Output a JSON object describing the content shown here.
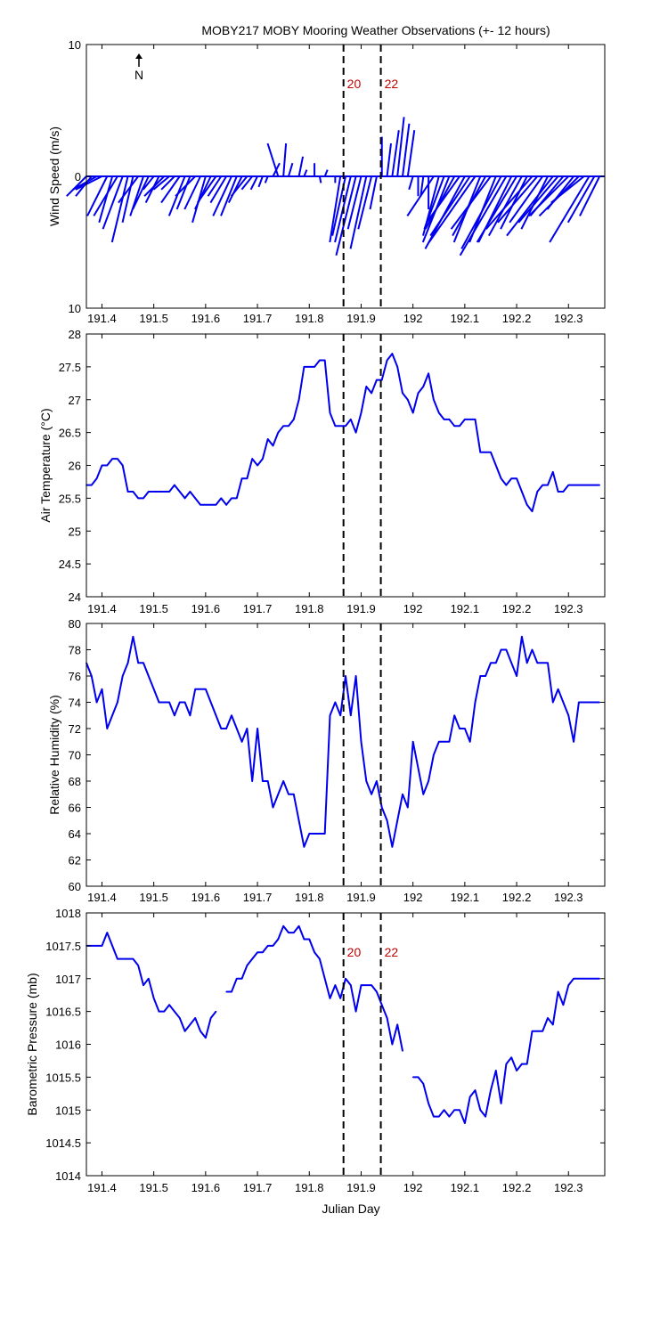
{
  "title": "MOBY217 MOBY Mooring Weather Observations (+- 12 hours)",
  "xlabel": "Julian Day",
  "x_ticks": [
    191.4,
    191.5,
    191.6,
    191.7,
    191.8,
    191.9,
    192,
    192.1,
    192.2,
    192.3
  ],
  "x_tick_labels": [
    "191.4",
    "191.5",
    "191.6",
    "191.7",
    "191.8",
    "191.9",
    "192",
    "192.1",
    "192.2",
    "192.3"
  ],
  "xlim": [
    191.37,
    192.37
  ],
  "colors": {
    "series": "#0000ee",
    "marker": "#c00000"
  },
  "markers": [
    {
      "x": 191.866,
      "label": "20"
    },
    {
      "x": 191.938,
      "label": "22"
    }
  ],
  "north_label": "N",
  "chart_data": [
    {
      "type": "quiver",
      "name": "wind",
      "ylabel": "Wind Speed (m/s)",
      "ylim": [
        -10,
        10
      ],
      "y_ticks": [
        10,
        0,
        10
      ],
      "y_tick_labels": [
        "10",
        "0",
        "10"
      ],
      "show_markers": true,
      "x": [
        191.37,
        191.38,
        191.39,
        191.4,
        191.41,
        191.42,
        191.43,
        191.44,
        191.45,
        191.46,
        191.47,
        191.48,
        191.49,
        191.5,
        191.51,
        191.52,
        191.53,
        191.54,
        191.55,
        191.56,
        191.57,
        191.58,
        191.59,
        191.6,
        191.61,
        191.62,
        191.63,
        191.64,
        191.65,
        191.66,
        191.67,
        191.68,
        191.69,
        191.7,
        191.71,
        191.72,
        191.73,
        191.74,
        191.75,
        191.76,
        191.77,
        191.78,
        191.79,
        191.8,
        191.81,
        191.82,
        191.83,
        191.84,
        191.85,
        191.86,
        191.87,
        191.88,
        191.89,
        191.9,
        191.91,
        191.92,
        191.93,
        191.94,
        191.95,
        191.96,
        191.97,
        191.98,
        191.99,
        192.0,
        192.01,
        192.02,
        192.03,
        192.04,
        192.05,
        192.06,
        192.07,
        192.08,
        192.09,
        192.1,
        192.11,
        192.12,
        192.13,
        192.14,
        192.15,
        192.16,
        192.17,
        192.18,
        192.19,
        192.2,
        192.21,
        192.22,
        192.23,
        192.24,
        192.25,
        192.26,
        192.27,
        192.28,
        192.29,
        192.3,
        192.31,
        192.32,
        192.33,
        192.34,
        192.35,
        192.36
      ],
      "u": [
        -1.5,
        -1.2,
        -1.8,
        -2.0,
        -1.5,
        -1.0,
        -1.8,
        -1.5,
        -1.2,
        -0.8,
        -1.5,
        -1.0,
        -1.2,
        -0.8,
        -1.0,
        -1.5,
        -1.2,
        -1.0,
        -1.4,
        -1.2,
        -1.0,
        -1.5,
        -1.2,
        -1.0,
        -1.2,
        -1.4,
        -1.0,
        -1.2,
        -1.4,
        -1.2,
        -1.0,
        -1.2,
        -0.8,
        -0.5,
        -0.3,
        -0.2,
        0.5,
        -0.8,
        0.2,
        0.3,
        0.0,
        0.3,
        0.2,
        0.0,
        0.0,
        0.1,
        0.2,
        0.3,
        0.0,
        -0.8,
        -1.0,
        -1.2,
        -1.5,
        -1.0,
        -1.2,
        -1.0,
        -0.5,
        0.0,
        0.3,
        0.5,
        0.5,
        0.5,
        0.5,
        -0.3,
        0.0,
        -0.2,
        0.0,
        -2.0,
        -1.2,
        -1.5,
        -2.0,
        -2.2,
        -2.5,
        -3.0,
        -3.0,
        -3.5,
        -2.0,
        -2.5,
        -3.0,
        -2.0,
        -3.0,
        -3.5,
        -2.5,
        -3.0,
        -2.5,
        -2.0,
        -3.5,
        -3.0,
        -2.5,
        -2.0,
        -3.5,
        -3.0,
        -2.5,
        -3.0,
        -2.0,
        -3.0,
        -2.5,
        -3.0,
        -2.0,
        -1.5
      ],
      "v": [
        -1.5,
        -1.5,
        -1.0,
        -1.0,
        -3.0,
        -3.5,
        -3.0,
        -4.0,
        -5.0,
        -3.5,
        -2.0,
        -3.0,
        -2.5,
        -1.0,
        -2.0,
        -1.5,
        -1.0,
        -1.0,
        -2.0,
        -3.0,
        -2.5,
        -1.5,
        -2.5,
        -3.5,
        -2.5,
        -2.0,
        -1.5,
        -2.0,
        -3.0,
        -3.0,
        -2.0,
        -1.5,
        -1.0,
        -1.0,
        -0.8,
        -0.5,
        1.0,
        2.5,
        2.5,
        1.0,
        0.0,
        1.5,
        0.5,
        0.0,
        1.0,
        -0.5,
        0.5,
        0.0,
        -0.5,
        -5.0,
        -4.5,
        -5.0,
        -6.0,
        -4.0,
        -5.5,
        -4.0,
        -2.5,
        3.0,
        2.5,
        3.5,
        4.5,
        4.0,
        3.5,
        -1.0,
        -1.5,
        -1.5,
        -2.5,
        -3.0,
        -4.5,
        -4.0,
        -5.0,
        -4.0,
        -3.5,
        -5.5,
        -4.5,
        -5.0,
        -5.0,
        -4.5,
        -4.0,
        -5.0,
        -5.5,
        -6.0,
        -5.0,
        -5.0,
        -4.5,
        -4.0,
        -4.0,
        -3.5,
        -3.5,
        -4.0,
        -4.5,
        -3.5,
        -3.0,
        -3.0,
        -2.5,
        -3.0,
        -2.0,
        -5.0,
        -3.5,
        -3.0
      ]
    },
    {
      "type": "line",
      "name": "air-temperature",
      "ylabel": "Air Temperature (°C)",
      "ylim": [
        24,
        28
      ],
      "y_ticks": [
        24,
        24.5,
        25,
        25.5,
        26,
        26.5,
        27,
        27.5,
        28
      ],
      "y_tick_labels": [
        "24",
        "24.5",
        "25",
        "25.5",
        "26",
        "26.5",
        "27",
        "27.5",
        "28"
      ],
      "show_markers": false,
      "x": [
        191.37,
        191.38,
        191.39,
        191.4,
        191.41,
        191.42,
        191.43,
        191.44,
        191.45,
        191.46,
        191.47,
        191.48,
        191.49,
        191.5,
        191.51,
        191.52,
        191.53,
        191.54,
        191.55,
        191.56,
        191.57,
        191.58,
        191.59,
        191.6,
        191.61,
        191.62,
        191.63,
        191.64,
        191.65,
        191.66,
        191.67,
        191.68,
        191.69,
        191.7,
        191.71,
        191.72,
        191.73,
        191.74,
        191.75,
        191.76,
        191.77,
        191.78,
        191.79,
        191.8,
        191.81,
        191.82,
        191.83,
        191.84,
        191.85,
        191.86,
        191.87,
        191.88,
        191.89,
        191.9,
        191.91,
        191.92,
        191.93,
        191.94,
        191.95,
        191.96,
        191.97,
        191.98,
        191.99,
        192.0,
        192.01,
        192.02,
        192.03,
        192.04,
        192.05,
        192.06,
        192.07,
        192.08,
        192.09,
        192.1,
        192.11,
        192.12,
        192.13,
        192.14,
        192.15,
        192.16,
        192.17,
        192.18,
        192.19,
        192.2,
        192.21,
        192.22,
        192.23,
        192.24,
        192.25,
        192.26,
        192.27,
        192.28,
        192.29,
        192.3,
        192.31,
        192.32,
        192.33,
        192.34,
        192.35,
        192.36
      ],
      "y": [
        25.7,
        25.7,
        25.8,
        26.0,
        26.0,
        26.1,
        26.1,
        26.0,
        25.6,
        25.6,
        25.5,
        25.5,
        25.6,
        25.6,
        25.6,
        25.6,
        25.6,
        25.7,
        25.6,
        25.5,
        25.6,
        25.5,
        25.4,
        25.4,
        25.4,
        25.4,
        25.5,
        25.4,
        25.5,
        25.5,
        25.8,
        25.8,
        26.1,
        26.0,
        26.1,
        26.4,
        26.3,
        26.5,
        26.6,
        26.6,
        26.7,
        27.0,
        27.5,
        27.5,
        27.5,
        27.6,
        27.6,
        26.8,
        26.6,
        26.6,
        26.6,
        26.7,
        26.5,
        26.8,
        27.2,
        27.1,
        27.3,
        27.3,
        27.6,
        27.7,
        27.5,
        27.1,
        27.0,
        26.8,
        27.1,
        27.2,
        27.4,
        27.0,
        26.8,
        26.7,
        26.7,
        26.6,
        26.6,
        26.7,
        26.7,
        26.7,
        26.2,
        26.2,
        26.2,
        26.0,
        25.8,
        25.7,
        25.8,
        25.8,
        25.6,
        25.4,
        25.3,
        25.6,
        25.7,
        25.7,
        25.9,
        25.6,
        25.6,
        25.7,
        25.7,
        25.7,
        25.7,
        25.7,
        25.7,
        25.7
      ]
    },
    {
      "type": "line",
      "name": "relative-humidity",
      "ylabel": "Relative Humidity (%)",
      "ylim": [
        60,
        80
      ],
      "y_ticks": [
        60,
        62,
        64,
        66,
        68,
        70,
        72,
        74,
        76,
        78,
        80
      ],
      "y_tick_labels": [
        "60",
        "62",
        "64",
        "66",
        "68",
        "70",
        "72",
        "74",
        "76",
        "78",
        "80"
      ],
      "show_markers": false,
      "x": [
        191.37,
        191.38,
        191.39,
        191.4,
        191.41,
        191.42,
        191.43,
        191.44,
        191.45,
        191.46,
        191.47,
        191.48,
        191.49,
        191.5,
        191.51,
        191.52,
        191.53,
        191.54,
        191.55,
        191.56,
        191.57,
        191.58,
        191.59,
        191.6,
        191.61,
        191.62,
        191.63,
        191.64,
        191.65,
        191.66,
        191.67,
        191.68,
        191.69,
        191.7,
        191.71,
        191.72,
        191.73,
        191.74,
        191.75,
        191.76,
        191.77,
        191.78,
        191.79,
        191.8,
        191.81,
        191.82,
        191.83,
        191.84,
        191.85,
        191.86,
        191.87,
        191.88,
        191.89,
        191.9,
        191.91,
        191.92,
        191.93,
        191.94,
        191.95,
        191.96,
        191.97,
        191.98,
        191.99,
        192.0,
        192.01,
        192.02,
        192.03,
        192.04,
        192.05,
        192.06,
        192.07,
        192.08,
        192.09,
        192.1,
        192.11,
        192.12,
        192.13,
        192.14,
        192.15,
        192.16,
        192.17,
        192.18,
        192.19,
        192.2,
        192.21,
        192.22,
        192.23,
        192.24,
        192.25,
        192.26,
        192.27,
        192.28,
        192.29,
        192.3,
        192.31,
        192.32,
        192.33,
        192.34,
        192.35,
        192.36
      ],
      "y": [
        77,
        76,
        74,
        75,
        72,
        73,
        74,
        76,
        77,
        79,
        77,
        77,
        76,
        75,
        74,
        74,
        74,
        73,
        74,
        74,
        73,
        75,
        75,
        75,
        74,
        73,
        72,
        72,
        73,
        72,
        71,
        72,
        68,
        72,
        68,
        68,
        66,
        67,
        68,
        67,
        67,
        65,
        63,
        64,
        64,
        64,
        64,
        73,
        74,
        73,
        76,
        73,
        76,
        71,
        68,
        67,
        68,
        66,
        65,
        63,
        65,
        67,
        66,
        71,
        69,
        67,
        68,
        70,
        71,
        71,
        71,
        73,
        72,
        72,
        71,
        74,
        76,
        76,
        77,
        77,
        78,
        78,
        77,
        76,
        79,
        77,
        78,
        77,
        77,
        77,
        74,
        75,
        74,
        73,
        71,
        74,
        74,
        74,
        74,
        74
      ],
      "note": "last visible points near right edge around 71-74"
    },
    {
      "type": "line",
      "name": "barometric-pressure",
      "ylabel": "Barometric Pressure (mb)",
      "ylim": [
        1014,
        1018
      ],
      "y_ticks": [
        1014,
        1014.5,
        1015,
        1015.5,
        1016,
        1016.5,
        1017,
        1017.5,
        1018
      ],
      "y_tick_labels": [
        "1014",
        "1014.5",
        "1015",
        "1015.5",
        "1016",
        "1016.5",
        "1017",
        "1017.5",
        "1018"
      ],
      "show_markers": true,
      "x": [
        191.37,
        191.38,
        191.39,
        191.4,
        191.41,
        191.42,
        191.43,
        191.44,
        191.45,
        191.46,
        191.47,
        191.48,
        191.49,
        191.5,
        191.51,
        191.52,
        191.53,
        191.54,
        191.55,
        191.56,
        191.57,
        191.58,
        191.59,
        191.6,
        191.61,
        191.62,
        191.63,
        191.64,
        191.65,
        191.66,
        191.67,
        191.68,
        191.69,
        191.7,
        191.71,
        191.72,
        191.73,
        191.74,
        191.75,
        191.76,
        191.77,
        191.78,
        191.79,
        191.8,
        191.81,
        191.82,
        191.83,
        191.84,
        191.85,
        191.86,
        191.87,
        191.88,
        191.89,
        191.9,
        191.91,
        191.92,
        191.93,
        191.94,
        191.95,
        191.96,
        191.97,
        191.98,
        191.99,
        192.0,
        192.01,
        192.02,
        192.03,
        192.04,
        192.05,
        192.06,
        192.07,
        192.08,
        192.09,
        192.1,
        192.11,
        192.12,
        192.13,
        192.14,
        192.15,
        192.16,
        192.17,
        192.18,
        192.19,
        192.2,
        192.21,
        192.22,
        192.23,
        192.24,
        192.25,
        192.26,
        192.27,
        192.28,
        192.29,
        192.3,
        192.31,
        192.32,
        192.33,
        192.34,
        192.35,
        192.36
      ],
      "y": [
        1017.5,
        1017.5,
        1017.5,
        1017.5,
        1017.7,
        1017.5,
        1017.3,
        1017.3,
        1017.3,
        1017.3,
        1017.2,
        1016.9,
        1017.0,
        1016.7,
        1016.5,
        1016.5,
        1016.6,
        1016.5,
        1016.4,
        1016.2,
        1016.3,
        1016.4,
        1016.2,
        1016.1,
        1016.4,
        1016.5,
        null,
        1016.8,
        1016.8,
        1017.0,
        1017.0,
        1017.2,
        1017.3,
        1017.4,
        1017.4,
        1017.5,
        1017.5,
        1017.6,
        1017.8,
        1017.7,
        1017.7,
        1017.8,
        1017.6,
        1017.6,
        1017.4,
        1017.3,
        1017.0,
        1016.7,
        1016.9,
        1016.7,
        1017.0,
        1016.9,
        1016.5,
        1016.9,
        1016.9,
        1016.9,
        1016.8,
        1016.6,
        1016.4,
        1016.0,
        1016.3,
        1015.9,
        null,
        1015.5,
        1015.5,
        1015.4,
        1015.1,
        1014.9,
        1014.9,
        1015.0,
        1014.9,
        1015.0,
        1015.0,
        1014.8,
        1015.2,
        1015.3,
        1015.0,
        1014.9,
        1015.3,
        1015.6,
        1015.1,
        1015.7,
        1015.8,
        1015.6,
        1015.7,
        1015.7,
        1016.2,
        1016.2,
        1016.2,
        1016.4,
        1016.3,
        1016.8,
        1016.6,
        1016.9,
        1017.0,
        1017.0,
        1017.0,
        1017.0,
        1017.0,
        1017.0
      ]
    }
  ]
}
